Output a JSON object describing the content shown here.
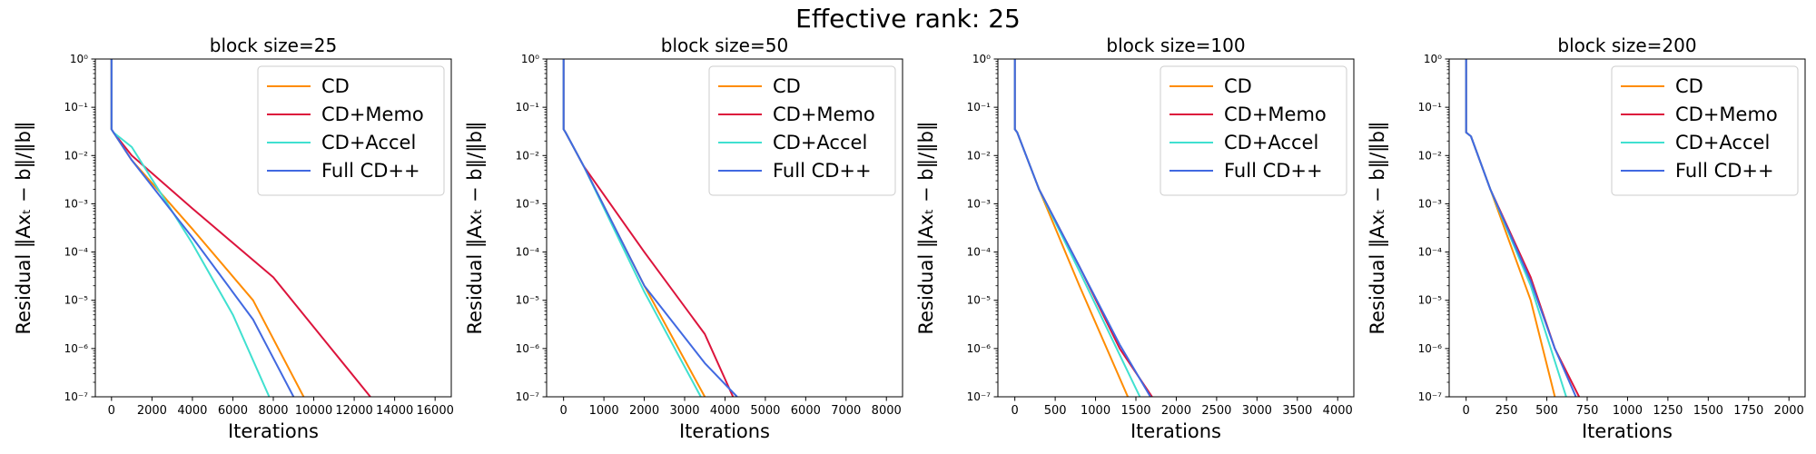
{
  "figure": {
    "title": "Effective rank: 25",
    "colors": {
      "CD": "#ff8c00",
      "CD+Memo": "#dc143c",
      "CD+Accel": "#40e0d0",
      "Full CD++": "#4169e1"
    }
  },
  "chart_data": [
    {
      "type": "line",
      "title": "block size=25",
      "xlabel": "Iterations",
      "ylabel": "Residual ‖Axₜ − b‖/‖b‖",
      "yscale": "log",
      "xlim": [
        -800,
        16800
      ],
      "ylim": [
        1e-07,
        1
      ],
      "xticks": [
        0,
        2000,
        4000,
        6000,
        8000,
        10000,
        12000,
        14000,
        16000
      ],
      "xtick_labels": [
        "0",
        "2000",
        "4000",
        "6000",
        "8000",
        "10000",
        "12000",
        "14000",
        "16000"
      ],
      "ytick_labels": [
        "10⁻⁷",
        "10⁻⁶",
        "10⁻⁵",
        "10⁻⁴",
        "10⁻³",
        "10⁻²",
        "10⁻¹",
        "10⁰"
      ],
      "legend": "top-right",
      "grid": false,
      "series": [
        {
          "name": "CD",
          "color": "#ff8c00",
          "x": [
            0,
            0,
            100,
            1000,
            4000,
            7000,
            9500
          ],
          "y": [
            1,
            0.035,
            0.03,
            0.008,
            0.0003,
            1e-05,
            1e-07
          ]
        },
        {
          "name": "CD+Memo",
          "color": "#dc143c",
          "x": [
            0,
            0,
            100,
            1000,
            4000,
            8000,
            12800
          ],
          "y": [
            1,
            0.035,
            0.03,
            0.01,
            0.0008,
            3e-05,
            1e-07
          ]
        },
        {
          "name": "CD+Accel",
          "color": "#40e0d0",
          "x": [
            0,
            0,
            100,
            1000,
            4000,
            6000,
            7800
          ],
          "y": [
            1,
            0.035,
            0.03,
            0.015,
            0.00015,
            5e-06,
            1e-07
          ]
        },
        {
          "name": "Full CD++",
          "color": "#4169e1",
          "x": [
            0,
            0,
            100,
            1000,
            4000,
            7000,
            9000
          ],
          "y": [
            1,
            0.035,
            0.03,
            0.008,
            0.0002,
            4e-06,
            1e-07
          ]
        }
      ]
    },
    {
      "type": "line",
      "title": "block size=50",
      "xlabel": "Iterations",
      "ylabel": "Residual ‖Axₜ − b‖/‖b‖",
      "yscale": "log",
      "xlim": [
        -420,
        8400
      ],
      "ylim": [
        1e-07,
        1
      ],
      "xticks": [
        0,
        1000,
        2000,
        3000,
        4000,
        5000,
        6000,
        7000,
        8000
      ],
      "xtick_labels": [
        "0",
        "1000",
        "2000",
        "3000",
        "4000",
        "5000",
        "6000",
        "7000",
        "8000"
      ],
      "ytick_labels": [
        "10⁻⁷",
        "10⁻⁶",
        "10⁻⁵",
        "10⁻⁴",
        "10⁻³",
        "10⁻²",
        "10⁻¹",
        "10⁰"
      ],
      "legend": "top-right",
      "grid": false,
      "series": [
        {
          "name": "CD",
          "color": "#ff8c00",
          "x": [
            0,
            0,
            50,
            500,
            2000,
            3500
          ],
          "y": [
            1,
            0.035,
            0.03,
            0.006,
            2e-05,
            1e-07
          ]
        },
        {
          "name": "CD+Memo",
          "color": "#dc143c",
          "x": [
            0,
            0,
            50,
            500,
            2000,
            3500,
            4200
          ],
          "y": [
            1,
            0.035,
            0.03,
            0.006,
            0.0001,
            2e-06,
            1e-07
          ]
        },
        {
          "name": "CD+Accel",
          "color": "#40e0d0",
          "x": [
            0,
            0,
            50,
            500,
            2000,
            3400
          ],
          "y": [
            1,
            0.035,
            0.03,
            0.006,
            1.5e-05,
            1e-07
          ]
        },
        {
          "name": "Full CD++",
          "color": "#4169e1",
          "x": [
            0,
            0,
            50,
            500,
            2000,
            3500,
            4300
          ],
          "y": [
            1,
            0.035,
            0.03,
            0.006,
            2e-05,
            5e-07,
            1e-07
          ]
        }
      ]
    },
    {
      "type": "line",
      "title": "block size=100",
      "xlabel": "Iterations",
      "ylabel": "Residual ‖Axₜ − b‖/‖b‖",
      "yscale": "log",
      "xlim": [
        -210,
        4200
      ],
      "ylim": [
        1e-07,
        1
      ],
      "xticks": [
        0,
        500,
        1000,
        1500,
        2000,
        2500,
        3000,
        3500,
        4000
      ],
      "xtick_labels": [
        "0",
        "500",
        "1000",
        "1500",
        "2000",
        "2500",
        "3000",
        "3500",
        "4000"
      ],
      "ytick_labels": [
        "10⁻⁷",
        "10⁻⁶",
        "10⁻⁵",
        "10⁻⁴",
        "10⁻³",
        "10⁻²",
        "10⁻¹",
        "10⁰"
      ],
      "legend": "top-right",
      "grid": false,
      "series": [
        {
          "name": "CD",
          "color": "#ff8c00",
          "x": [
            0,
            0,
            30,
            300,
            800,
            1400
          ],
          "y": [
            1,
            0.035,
            0.03,
            0.002,
            2e-05,
            1e-07
          ]
        },
        {
          "name": "CD+Memo",
          "color": "#dc143c",
          "x": [
            0,
            0,
            30,
            300,
            800,
            1300,
            1700
          ],
          "y": [
            1,
            0.035,
            0.03,
            0.002,
            5e-05,
            1e-06,
            1e-07
          ]
        },
        {
          "name": "CD+Accel",
          "color": "#40e0d0",
          "x": [
            0,
            0,
            30,
            300,
            800,
            1550
          ],
          "y": [
            1,
            0.035,
            0.03,
            0.002,
            4e-05,
            1e-07
          ]
        },
        {
          "name": "Full CD++",
          "color": "#4169e1",
          "x": [
            0,
            0,
            30,
            300,
            800,
            1300,
            1680
          ],
          "y": [
            1,
            0.035,
            0.03,
            0.002,
            5e-05,
            1.2e-06,
            1e-07
          ]
        }
      ]
    },
    {
      "type": "line",
      "title": "block size=200",
      "xlabel": "Iterations",
      "ylabel": "Residual ‖Axₜ − b‖/‖b‖",
      "yscale": "log",
      "xlim": [
        -105,
        2100
      ],
      "ylim": [
        1e-07,
        1
      ],
      "xticks": [
        0,
        250,
        500,
        750,
        1000,
        1250,
        1500,
        1750,
        2000
      ],
      "xtick_labels": [
        "0",
        "250",
        "500",
        "750",
        "1000",
        "1250",
        "1500",
        "1750",
        "2000"
      ],
      "ytick_labels": [
        "10⁻⁷",
        "10⁻⁶",
        "10⁻⁵",
        "10⁻⁴",
        "10⁻³",
        "10⁻²",
        "10⁻¹",
        "10⁰"
      ],
      "legend": "top-right",
      "grid": false,
      "series": [
        {
          "name": "CD",
          "color": "#ff8c00",
          "x": [
            0,
            0,
            30,
            150,
            400,
            550
          ],
          "y": [
            1,
            0.03,
            0.025,
            0.002,
            1e-05,
            1e-07
          ]
        },
        {
          "name": "CD+Memo",
          "color": "#dc143c",
          "x": [
            0,
            0,
            30,
            150,
            400,
            550,
            700
          ],
          "y": [
            1,
            0.03,
            0.025,
            0.002,
            3e-05,
            1e-06,
            1e-07
          ]
        },
        {
          "name": "CD+Accel",
          "color": "#40e0d0",
          "x": [
            0,
            0,
            30,
            150,
            400,
            620
          ],
          "y": [
            1,
            0.03,
            0.025,
            0.002,
            2e-05,
            1e-07
          ]
        },
        {
          "name": "Full CD++",
          "color": "#4169e1",
          "x": [
            0,
            0,
            30,
            150,
            400,
            550,
            680
          ],
          "y": [
            1,
            0.03,
            0.025,
            0.002,
            2.5e-05,
            1e-06,
            1e-07
          ]
        }
      ]
    }
  ]
}
